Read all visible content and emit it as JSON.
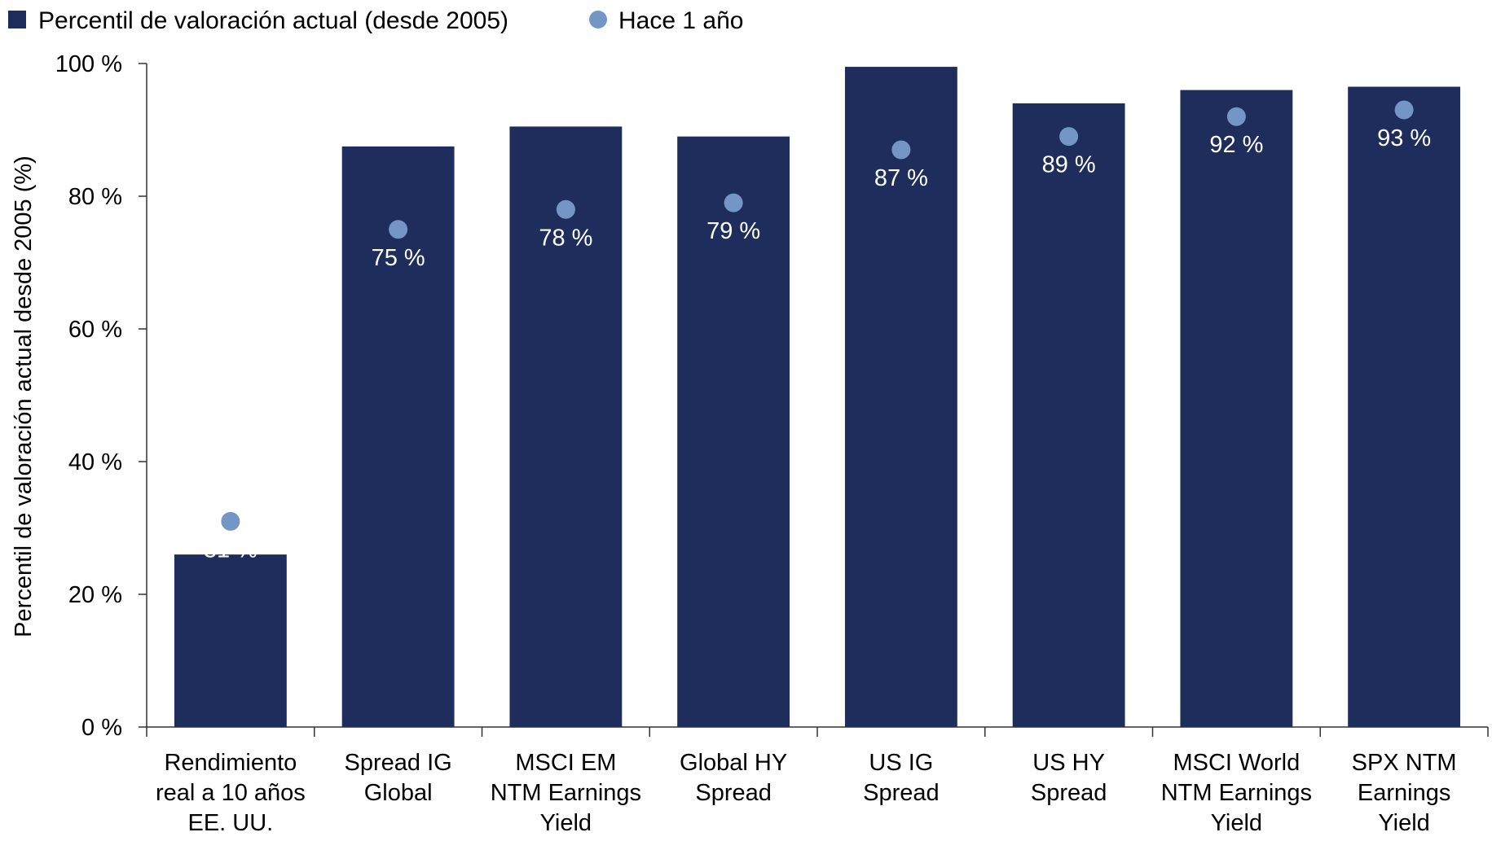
{
  "chart_data": {
    "type": "bar",
    "title": "",
    "xlabel": "",
    "ylabel": "Percentil de valoración actual desde 2005 (%)",
    "ylim": [
      0,
      100
    ],
    "yticks": [
      "0 %",
      "20 %",
      "40 %",
      "60 %",
      "80 %",
      "100 %"
    ],
    "ytick_values": [
      0,
      20,
      40,
      60,
      80,
      100
    ],
    "categories": [
      [
        "Rendimiento",
        "real a 10 años",
        "EE. UU."
      ],
      [
        "Spread IG",
        "Global"
      ],
      [
        "MSCI EM",
        "NTM Earnings",
        "Yield"
      ],
      [
        "Global HY",
        "Spread"
      ],
      [
        "US IG",
        "Spread"
      ],
      [
        "US HY",
        "Spread"
      ],
      [
        "MSCI World",
        "NTM Earnings",
        "Yield"
      ],
      [
        "SPX NTM",
        "Earnings",
        "Yield"
      ]
    ],
    "series": [
      {
        "name": "Percentil de valoración actual (desde 2005)",
        "kind": "bar",
        "color": "#1f2d5c",
        "values": [
          26,
          87.5,
          90.5,
          89,
          99.5,
          94,
          96,
          96.5
        ]
      },
      {
        "name": "Hace 1 año",
        "kind": "dot",
        "color": "#7396c6",
        "values": [
          31,
          75,
          78,
          79,
          87,
          89,
          92,
          93
        ],
        "labels": [
          "31 %",
          "75 %",
          "78 %",
          "79 %",
          "87 %",
          "89 %",
          "92 %",
          "93 %"
        ]
      }
    ],
    "legend_position": "top-left",
    "grid": false
  }
}
